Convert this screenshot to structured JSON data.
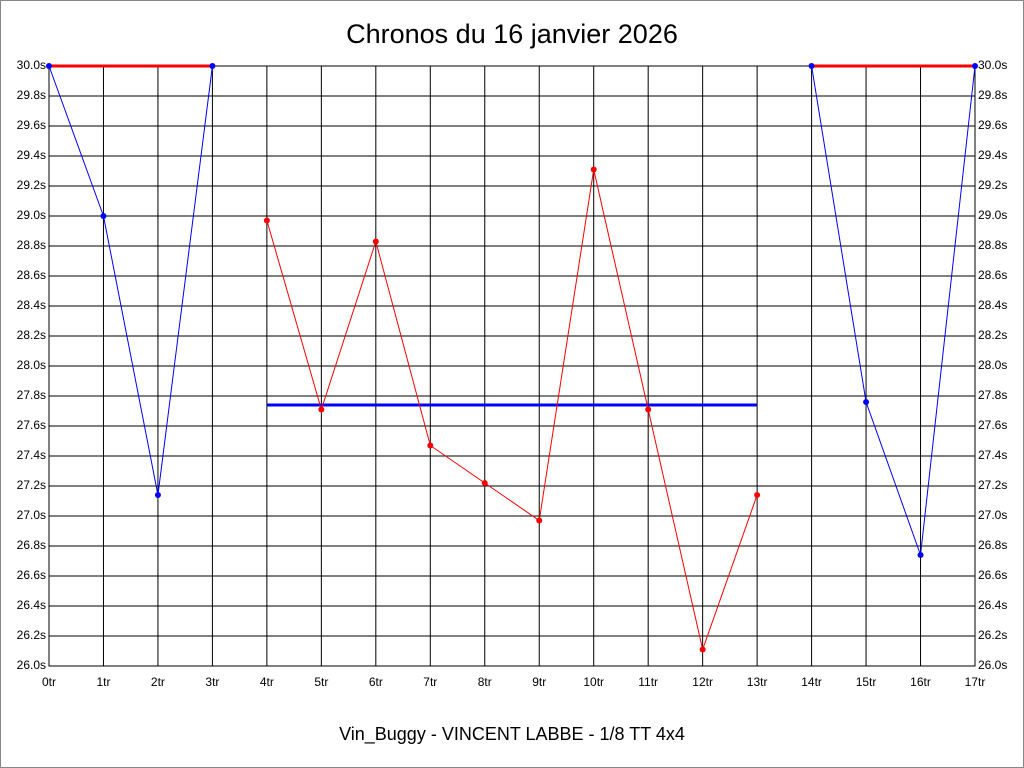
{
  "chart_data": {
    "type": "line",
    "title": "Chronos du 16 janvier 2026",
    "x_label": "Vin_Buggy - VINCENT LABBE - 1/8 TT 4x4",
    "categories": [
      "0tr",
      "1tr",
      "2tr",
      "3tr",
      "4tr",
      "5tr",
      "6tr",
      "7tr",
      "8tr",
      "9tr",
      "10tr",
      "11tr",
      "12tr",
      "13tr",
      "14tr",
      "15tr",
      "16tr",
      "17tr"
    ],
    "ylim": [
      26.0,
      30.0
    ],
    "yticks": [
      {
        "value": 26.0,
        "label": "26.0s"
      },
      {
        "value": 26.2,
        "label": "26.2s"
      },
      {
        "value": 26.4,
        "label": "26.4s"
      },
      {
        "value": 26.6,
        "label": "26.6s"
      },
      {
        "value": 26.8,
        "label": "26.8s"
      },
      {
        "value": 27.0,
        "label": "27.0s"
      },
      {
        "value": 27.2,
        "label": "27.2s"
      },
      {
        "value": 27.4,
        "label": "27.4s"
      },
      {
        "value": 27.6,
        "label": "27.6s"
      },
      {
        "value": 27.8,
        "label": "27.8s"
      },
      {
        "value": 28.0,
        "label": "28.0s"
      },
      {
        "value": 28.2,
        "label": "28.2s"
      },
      {
        "value": 28.4,
        "label": "28.4s"
      },
      {
        "value": 28.6,
        "label": "28.6s"
      },
      {
        "value": 28.8,
        "label": "28.8s"
      },
      {
        "value": 29.0,
        "label": "29.0s"
      },
      {
        "value": 29.2,
        "label": "29.2s"
      },
      {
        "value": 29.4,
        "label": "29.4s"
      },
      {
        "value": 29.6,
        "label": "29.6s"
      },
      {
        "value": 29.8,
        "label": "29.8s"
      },
      {
        "value": 30.0,
        "label": "30.0s"
      }
    ],
    "grid": true,
    "right_axis": true,
    "series": [
      {
        "color": "#ff0000",
        "width": 3,
        "marker": false,
        "values": [
          30.0,
          30.0,
          30.0,
          30.0,
          null,
          null,
          null,
          null,
          null,
          null,
          null,
          null,
          null,
          null,
          30.0,
          30.0,
          30.0,
          30.0
        ]
      },
      {
        "color": "#0000ff",
        "width": 3,
        "marker": false,
        "values": [
          null,
          null,
          null,
          null,
          27.74,
          27.74,
          27.74,
          27.74,
          27.74,
          27.74,
          27.74,
          27.74,
          27.74,
          27.74,
          null,
          null,
          null,
          null
        ]
      },
      {
        "color": "#0000ff",
        "width": 1,
        "marker": true,
        "values": [
          30.0,
          29.0,
          27.14,
          30.0,
          null,
          null,
          null,
          null,
          null,
          null,
          null,
          null,
          null,
          null,
          30.0,
          27.76,
          26.74,
          30.0
        ]
      },
      {
        "color": "#ff0000",
        "width": 1,
        "marker": true,
        "values": [
          null,
          null,
          null,
          null,
          28.97,
          27.71,
          28.83,
          27.47,
          27.22,
          26.97,
          29.31,
          27.71,
          26.11,
          27.14,
          null,
          null,
          null,
          null
        ]
      }
    ]
  }
}
